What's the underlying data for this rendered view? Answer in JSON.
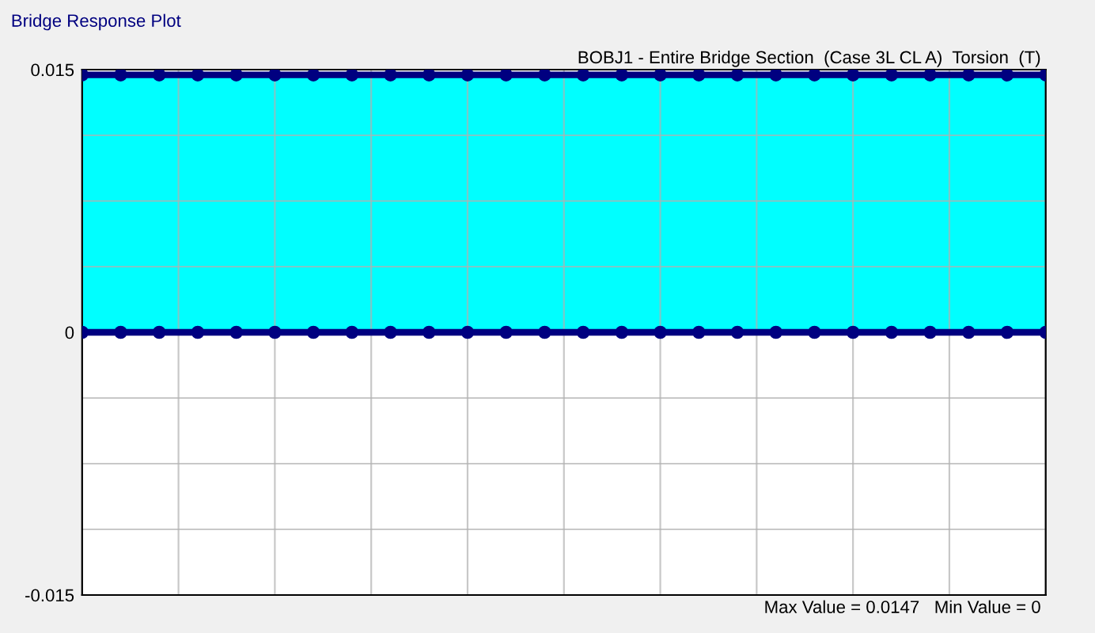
{
  "chart_data": {
    "type": "area",
    "title": "Bridge Response Plot",
    "subtitle": "BOBJ1 - Entire Bridge Section  (Case 3L CL A)  Torsion  (T)",
    "categories": [
      null,
      null,
      null,
      null,
      null,
      null,
      null,
      null,
      null,
      null,
      null,
      null,
      null,
      null,
      null,
      null,
      null,
      null,
      null,
      null,
      null,
      null,
      null,
      null,
      null,
      null
    ],
    "series": [
      {
        "color": "#00ffff",
        "values": [
          0.0147,
          0.0147,
          0.0147,
          0.0147,
          0.0147,
          0.0147,
          0.0147,
          0.0147,
          0.0147,
          0.0147,
          0.0147,
          0.0147,
          0.0147,
          0.0147,
          0.0147,
          0.0147,
          0.0147,
          0.0147,
          0.0147,
          0.0147,
          0.0147,
          0.0147,
          0.0147,
          0.0147,
          0.0147,
          0.0147
        ]
      },
      {
        "type": "line",
        "color": "#000080",
        "values": [
          0,
          0,
          0,
          0,
          0,
          0,
          0,
          0,
          0,
          0,
          0,
          0,
          0,
          0,
          0,
          0,
          0,
          0,
          0,
          0,
          0,
          0,
          0,
          0,
          0,
          0
        ]
      }
    ],
    "marker": "circle",
    "ylim": [
      -0.015,
      0.015
    ],
    "yticks": [
      {
        "value": -0.015,
        "label": "-0.015"
      },
      {
        "value": -0.01125,
        "label": null
      },
      {
        "value": -0.0075,
        "label": null
      },
      {
        "value": -0.00375,
        "label": null
      },
      0,
      {
        "value": 0.00375,
        "label": null
      },
      {
        "value": 0.0075,
        "label": null
      },
      {
        "value": 0.01125,
        "label": null
      },
      {
        "value": 0.015,
        "label": "0.015"
      }
    ],
    "grid": true,
    "annotations": [
      "Max Value = 0.0147   Min Value = 0"
    ]
  }
}
